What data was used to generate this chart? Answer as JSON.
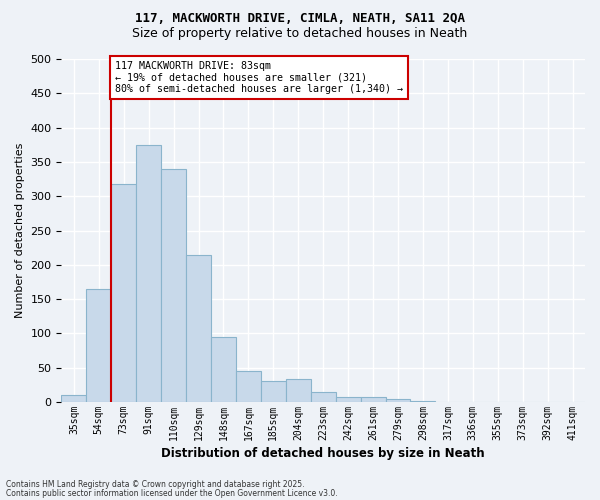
{
  "title1": "117, MACKWORTH DRIVE, CIMLA, NEATH, SA11 2QA",
  "title2": "Size of property relative to detached houses in Neath",
  "xlabel": "Distribution of detached houses by size in Neath",
  "ylabel": "Number of detached properties",
  "bar_color": "#c8d9ea",
  "bar_edge_color": "#8ab4cc",
  "background_color": "#eef2f7",
  "grid_color": "#ffffff",
  "bins": [
    "35sqm",
    "54sqm",
    "73sqm",
    "91sqm",
    "110sqm",
    "129sqm",
    "148sqm",
    "167sqm",
    "185sqm",
    "204sqm",
    "223sqm",
    "242sqm",
    "261sqm",
    "279sqm",
    "298sqm",
    "317sqm",
    "336sqm",
    "355sqm",
    "373sqm",
    "392sqm",
    "411sqm"
  ],
  "values": [
    10,
    165,
    318,
    375,
    340,
    215,
    95,
    45,
    30,
    33,
    15,
    8,
    7,
    4,
    1,
    0,
    0,
    0,
    0,
    0,
    0
  ],
  "vline_pos": 1.5,
  "vline_color": "#cc0000",
  "annotation_text": "117 MACKWORTH DRIVE: 83sqm\n← 19% of detached houses are smaller (321)\n80% of semi-detached houses are larger (1,340) →",
  "annotation_box_color": "#ffffff",
  "annotation_box_edge": "#cc0000",
  "ylim": [
    0,
    500
  ],
  "yticks": [
    0,
    50,
    100,
    150,
    200,
    250,
    300,
    350,
    400,
    450,
    500
  ],
  "footer1": "Contains HM Land Registry data © Crown copyright and database right 2025.",
  "footer2": "Contains public sector information licensed under the Open Government Licence v3.0."
}
